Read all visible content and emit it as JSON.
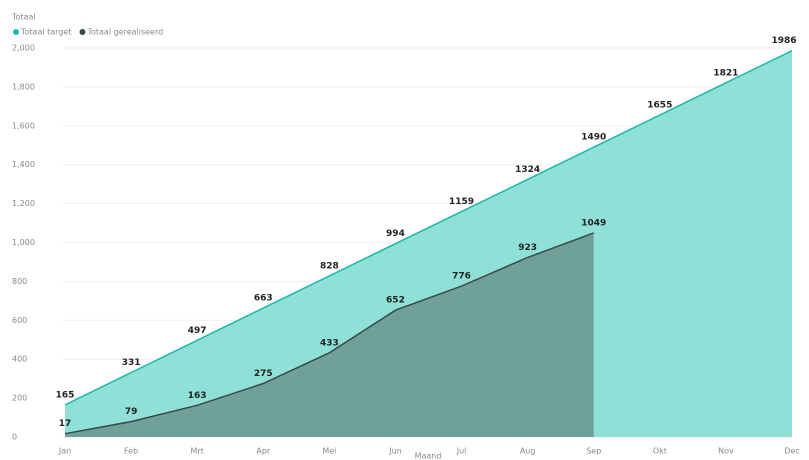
{
  "chart_data": {
    "type": "area",
    "ylabel": "Totaal",
    "xlabel": "Maand",
    "categories": [
      "Jan",
      "Feb",
      "Mrt",
      "Apr",
      "Mei",
      "Jun",
      "Jul",
      "Aug",
      "Sep",
      "Okt",
      "Nov",
      "Dec"
    ],
    "series": [
      {
        "name": "Totaal target",
        "color": "#1ab9a7",
        "fill": "#8fe1d7",
        "values": [
          165,
          331,
          497,
          663,
          828,
          994,
          1159,
          1324,
          1490,
          1655,
          1821,
          1986
        ]
      },
      {
        "name": "Totaal gerealiseerd",
        "color": "#3a4a48",
        "fill": "#6fa09a",
        "values": [
          17,
          79,
          163,
          275,
          433,
          652,
          776,
          923,
          1049,
          null,
          null,
          null
        ]
      }
    ],
    "ylim": [
      0,
      2000
    ],
    "yticks": [
      0,
      200,
      400,
      600,
      800,
      {
        "value": 1000,
        "label": "1,000"
      },
      {
        "value": 1200,
        "label": "1,200"
      },
      {
        "value": 1400,
        "label": "1,400"
      },
      {
        "value": 1600,
        "label": "1,600"
      },
      {
        "value": 1800,
        "label": "1,800"
      },
      {
        "value": 2000,
        "label": "2,000"
      }
    ],
    "grid": true,
    "legend": "top-left"
  }
}
